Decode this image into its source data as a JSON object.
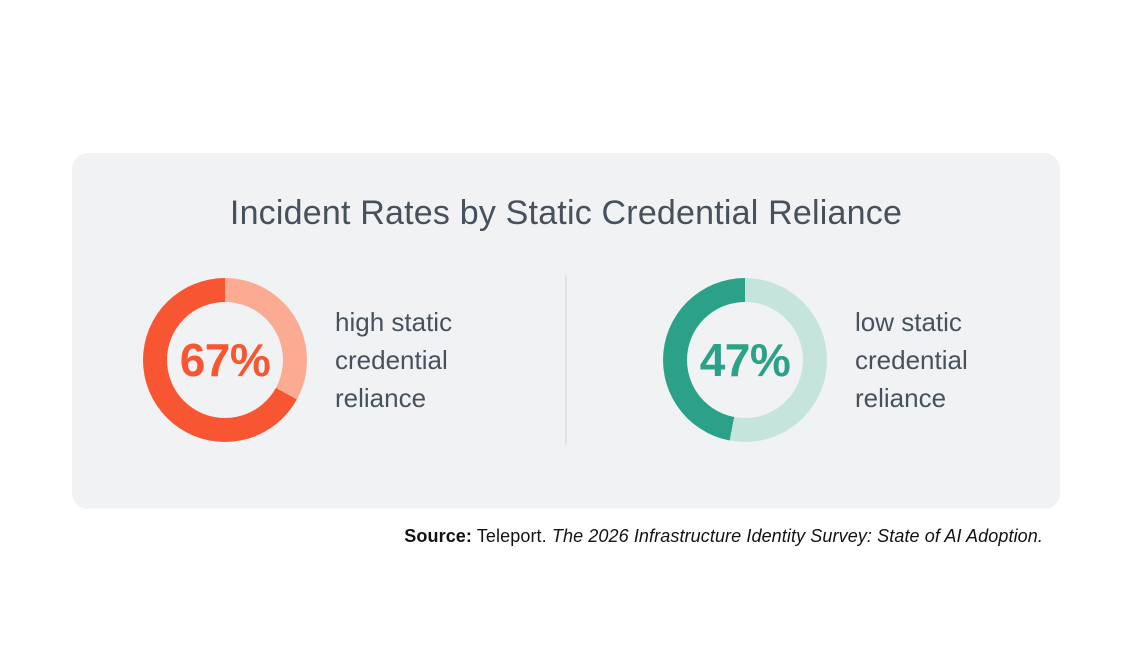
{
  "card": {
    "title": "Incident Rates by Static Credential Reliance",
    "background": "#F1F2F4",
    "title_color": "#46515C",
    "divider_color": "#E0E2E5",
    "label_color": "#47525D"
  },
  "chart_data": [
    {
      "type": "pie",
      "subtype": "donut",
      "title": "Incident Rates by Static Credential Reliance",
      "series_label": "high static credential reliance",
      "categories": [
        "incident rate",
        "remainder"
      ],
      "values": [
        67,
        33
      ],
      "center_label": "67%",
      "colors": [
        "#F85532",
        "#FBAB92"
      ],
      "legend_position": "right",
      "start_angle_deg": 0,
      "direction": "remainder drawn clockwise from top, value fills the rest"
    },
    {
      "type": "pie",
      "subtype": "donut",
      "title": "Incident Rates by Static Credential Reliance",
      "series_label": "low static credential reliance",
      "categories": [
        "incident rate",
        "remainder"
      ],
      "values": [
        47,
        53
      ],
      "center_label": "47%",
      "colors": [
        "#2BA187",
        "#C5E5DC"
      ],
      "legend_position": "right",
      "start_angle_deg": 0,
      "direction": "remainder drawn clockwise from top, value fills the rest"
    }
  ],
  "source": {
    "prefix": "Source:",
    "publisher": "Teleport.",
    "citation": "The 2026 Infrastructure Identity Survey: State of AI Adoption."
  }
}
